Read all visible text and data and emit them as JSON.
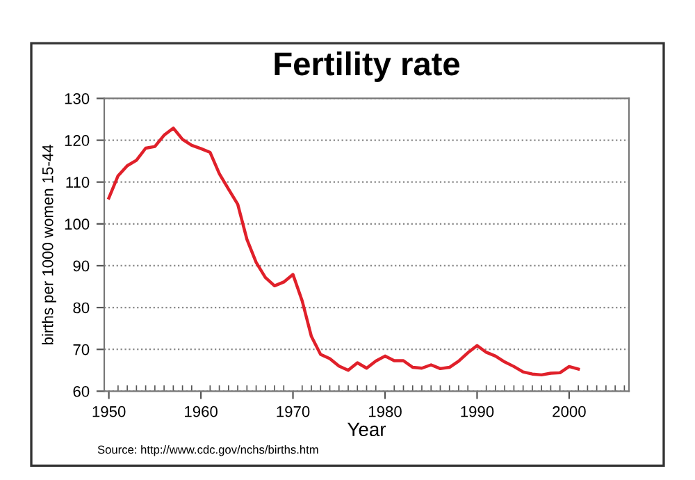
{
  "chart_data": {
    "type": "line",
    "title": "Fertility rate",
    "xlabel": "Year",
    "ylabel": "births per 1000 women 15-44",
    "annotations": [
      "Source: http://www.cdc.gov/nchs/births.htm"
    ],
    "x": [
      1950,
      1951,
      1952,
      1953,
      1954,
      1955,
      1956,
      1957,
      1958,
      1959,
      1960,
      1961,
      1962,
      1963,
      1964,
      1965,
      1966,
      1967,
      1968,
      1969,
      1970,
      1971,
      1972,
      1973,
      1974,
      1975,
      1976,
      1977,
      1978,
      1979,
      1980,
      1981,
      1982,
      1983,
      1984,
      1985,
      1986,
      1987,
      1988,
      1989,
      1990,
      1991,
      1992,
      1993,
      1994,
      1995,
      1996,
      1997,
      1998,
      1999,
      2000,
      2001
    ],
    "series": [
      {
        "color": "#e0202a",
        "values": [
          106.2,
          111.5,
          113.9,
          115.2,
          118.1,
          118.5,
          121.2,
          122.9,
          120.2,
          118.8,
          118.0,
          117.1,
          112.0,
          108.3,
          104.7,
          96.3,
          90.8,
          87.2,
          85.2,
          86.1,
          87.9,
          81.6,
          73.1,
          68.8,
          67.8,
          66.0,
          65.0,
          66.8,
          65.5,
          67.2,
          68.4,
          67.3,
          67.3,
          65.7,
          65.5,
          66.3,
          65.4,
          65.7,
          67.2,
          69.2,
          70.9,
          69.3,
          68.4,
          67.0,
          65.9,
          64.6,
          64.1,
          63.9,
          64.3,
          64.4,
          65.9,
          65.3
        ]
      }
    ],
    "xlim": [
      1949.5,
      2006.5
    ],
    "xticks": [
      1950,
      1960,
      1970,
      1980,
      1990,
      2000
    ],
    "ylim": [
      60,
      130
    ],
    "yticks": [
      60,
      70,
      80,
      90,
      100,
      110,
      120,
      130
    ],
    "grid": "y",
    "line_style": "solid",
    "marker": "none",
    "legend": false
  }
}
